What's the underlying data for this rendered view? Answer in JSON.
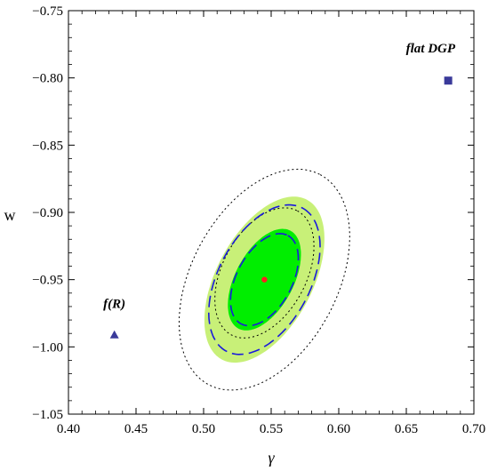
{
  "chart_data": {
    "type": "scatter",
    "title": "",
    "xlabel": "γ",
    "ylabel": "w",
    "xlim": [
      0.4,
      0.7
    ],
    "ylim": [
      -1.05,
      -0.75
    ],
    "xticks": [
      "0.40",
      "0.45",
      "0.50",
      "0.55",
      "0.60",
      "0.65",
      "0.70"
    ],
    "xtick_values": [
      0.4,
      0.45,
      0.5,
      0.55,
      0.6,
      0.65,
      0.7
    ],
    "yticks": [
      "−0.75",
      "−0.80",
      "−0.85",
      "−0.90",
      "−0.95",
      "−1.00",
      "−1.05"
    ],
    "ytick_values": [
      -0.75,
      -0.8,
      -0.85,
      -0.9,
      -0.95,
      -1.0,
      -1.05
    ],
    "grid": false,
    "best_fit": {
      "x": 0.545,
      "y": -0.95,
      "color": "#ff2020"
    },
    "contours": [
      {
        "kind": "filled",
        "color": "#c8f078",
        "center": [
          0.545,
          -0.95
        ],
        "semi_axis_major": 0.067,
        "semi_axis_minor": 0.0355,
        "angle_deg": -62
      },
      {
        "kind": "filled",
        "color": "#00ee00",
        "center": [
          0.545,
          -0.95
        ],
        "semi_axis_major": 0.041,
        "semi_axis_minor": 0.0215,
        "angle_deg": -62
      },
      {
        "kind": "dotted",
        "color": "#000000",
        "center": [
          0.545,
          -0.95
        ],
        "semi_axis_major": 0.088,
        "semi_axis_minor": 0.054,
        "angle_deg": -62
      },
      {
        "kind": "dotted",
        "color": "#000000",
        "center": [
          0.545,
          -0.945
        ],
        "semi_axis_major": 0.052,
        "semi_axis_minor": 0.031,
        "angle_deg": -62
      },
      {
        "kind": "dashed",
        "color": "#1a1adc",
        "center": [
          0.545,
          -0.95
        ],
        "semi_axis_major": 0.06,
        "semi_axis_minor": 0.034,
        "angle_deg": -62
      },
      {
        "kind": "dashed",
        "color": "#1a1adc",
        "center": [
          0.545,
          -0.95
        ],
        "semi_axis_major": 0.037,
        "semi_axis_minor": 0.0205,
        "angle_deg": -62
      }
    ],
    "markers": [
      {
        "label": "flat DGP",
        "x": 0.681,
        "y": -0.802,
        "shape": "square",
        "color": "#3a3a9a",
        "label_x": 0.668,
        "label_y": -0.781
      },
      {
        "label": "f(R)",
        "x": 0.434,
        "y": -0.991,
        "shape": "triangle",
        "color": "#3a3a9a",
        "label_x": 0.434,
        "label_y": -0.971
      }
    ]
  }
}
